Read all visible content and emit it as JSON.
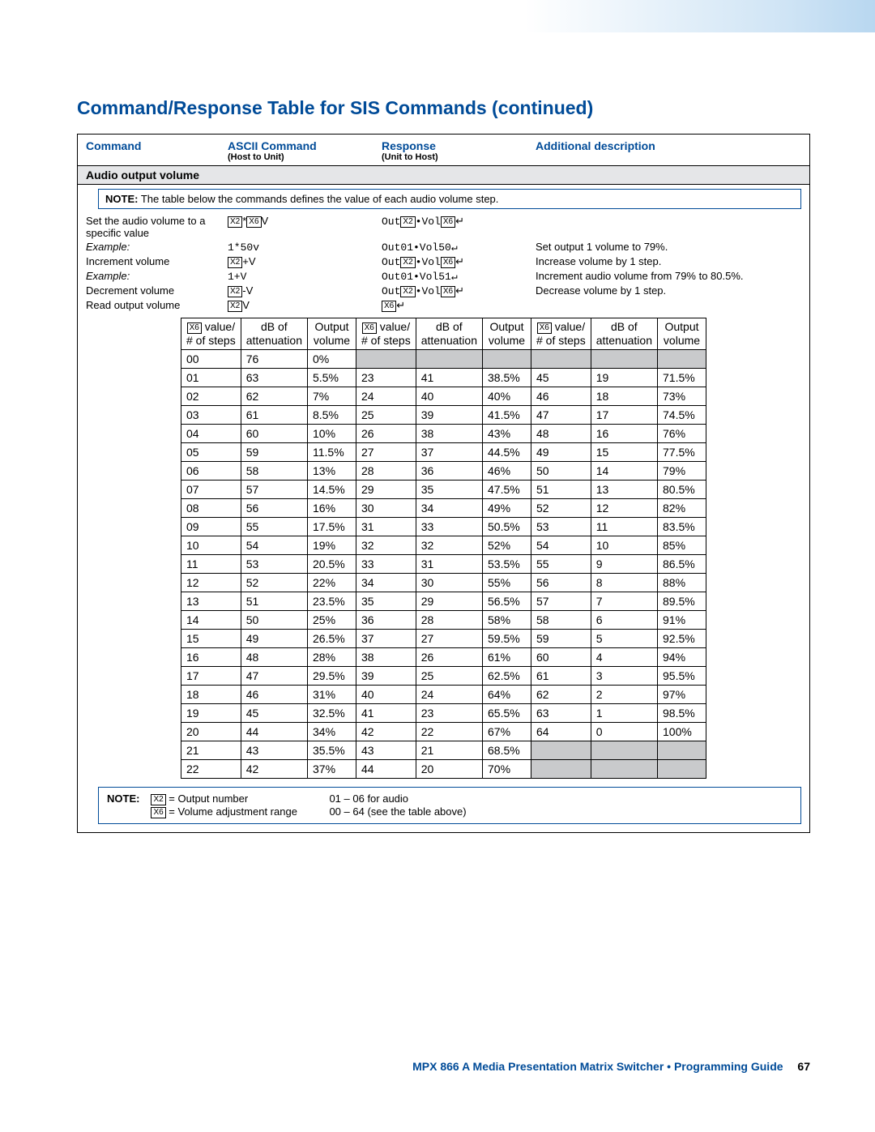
{
  "title": "Command/Response Table for SIS Commands (continued)",
  "headers": {
    "command": "Command",
    "ascii": "ASCII Command",
    "ascii_sub": "(Host to Unit)",
    "response": "Response",
    "response_sub": "(Unit to Host)",
    "additional": "Additional description"
  },
  "section": "Audio output volume",
  "note1_label": "NOTE:",
  "note1_text": "The table below the commands defines the value of each audio volume step.",
  "commands": [
    {
      "name": "Set the audio volume to a specific value",
      "ascii_pre": "",
      "ascii_x2": "X2",
      "ascii_mid": "*",
      "ascii_x6": "X6",
      "ascii_post": "V",
      "resp_pre": "Out",
      "resp_x2": "X2",
      "resp_mid": "•Vol",
      "resp_x6": "X6",
      "resp_ret": "↵",
      "desc": ""
    },
    {
      "name": "Example:",
      "italic": true,
      "ascii_plain": "1*50v",
      "resp_plain": "Out01•Vol50↵",
      "desc": "Set output 1 volume to 79%."
    },
    {
      "name": "Increment volume",
      "ascii_x2": "X2",
      "ascii_post": "+V",
      "resp_pre": "Out",
      "resp_x2": "X2",
      "resp_mid": "•Vol",
      "resp_x6": "X6",
      "resp_ret": "↵",
      "desc": "Increase volume by 1 step."
    },
    {
      "name": "Example:",
      "italic": true,
      "ascii_plain": "1+V",
      "resp_plain": "Out01•Vol51↵",
      "desc": "Increment audio volume from 79% to 80.5%."
    },
    {
      "name": "Decrement volume",
      "ascii_x2": "X2",
      "ascii_post": "-V",
      "resp_pre": "Out",
      "resp_x2": "X2",
      "resp_mid": "•Vol",
      "resp_x6": "X6",
      "resp_ret": "↵",
      "desc": "Decrease volume by 1 step."
    },
    {
      "name": "Read output volume",
      "ascii_x2": "X2",
      "ascii_post": "V",
      "resp_x6": "X6",
      "resp_ret": "↵",
      "desc": ""
    }
  ],
  "vol_headers": {
    "h1a": "X6",
    "h1b": "value/",
    "h1c": "# of steps",
    "h2a": "dB of",
    "h2b": "attenuation",
    "h3a": "Output",
    "h3b": "volume"
  },
  "vol_rows": [
    [
      "00",
      "76",
      "0%",
      "",
      "",
      "",
      "",
      "",
      ""
    ],
    [
      "01",
      "63",
      "5.5%",
      "23",
      "41",
      "38.5%",
      "45",
      "19",
      "71.5%"
    ],
    [
      "02",
      "62",
      "7%",
      "24",
      "40",
      "40%",
      "46",
      "18",
      "73%"
    ],
    [
      "03",
      "61",
      "8.5%",
      "25",
      "39",
      "41.5%",
      "47",
      "17",
      "74.5%"
    ],
    [
      "04",
      "60",
      "10%",
      "26",
      "38",
      "43%",
      "48",
      "16",
      "76%"
    ],
    [
      "05",
      "59",
      "11.5%",
      "27",
      "37",
      "44.5%",
      "49",
      "15",
      "77.5%"
    ],
    [
      "06",
      "58",
      "13%",
      "28",
      "36",
      "46%",
      "50",
      "14",
      "79%"
    ],
    [
      "07",
      "57",
      "14.5%",
      "29",
      "35",
      "47.5%",
      "51",
      "13",
      "80.5%"
    ],
    [
      "08",
      "56",
      "16%",
      "30",
      "34",
      "49%",
      "52",
      "12",
      "82%"
    ],
    [
      "09",
      "55",
      "17.5%",
      "31",
      "33",
      "50.5%",
      "53",
      "11",
      "83.5%"
    ],
    [
      "10",
      "54",
      "19%",
      "32",
      "32",
      "52%",
      "54",
      "10",
      "85%"
    ],
    [
      "11",
      "53",
      "20.5%",
      "33",
      "31",
      "53.5%",
      "55",
      "9",
      "86.5%"
    ],
    [
      "12",
      "52",
      "22%",
      "34",
      "30",
      "55%",
      "56",
      "8",
      "88%"
    ],
    [
      "13",
      "51",
      "23.5%",
      "35",
      "29",
      "56.5%",
      "57",
      "7",
      "89.5%"
    ],
    [
      "14",
      "50",
      "25%",
      "36",
      "28",
      "58%",
      "58",
      "6",
      "91%"
    ],
    [
      "15",
      "49",
      "26.5%",
      "37",
      "27",
      "59.5%",
      "59",
      "5",
      "92.5%"
    ],
    [
      "16",
      "48",
      "28%",
      "38",
      "26",
      "61%",
      "60",
      "4",
      "94%"
    ],
    [
      "17",
      "47",
      "29.5%",
      "39",
      "25",
      "62.5%",
      "61",
      "3",
      "95.5%"
    ],
    [
      "18",
      "46",
      "31%",
      "40",
      "24",
      "64%",
      "62",
      "2",
      "97%"
    ],
    [
      "19",
      "45",
      "32.5%",
      "41",
      "23",
      "65.5%",
      "63",
      "1",
      "98.5%"
    ],
    [
      "20",
      "44",
      "34%",
      "42",
      "22",
      "67%",
      "64",
      "0",
      "100%"
    ],
    [
      "21",
      "43",
      "35.5%",
      "43",
      "21",
      "68.5%",
      "",
      "",
      ""
    ],
    [
      "22",
      "42",
      "37%",
      "44",
      "20",
      "70%",
      "",
      "",
      ""
    ]
  ],
  "note2_label": "NOTE:",
  "note2_x2": "X2",
  "note2_x2_eq": " = Output number",
  "note2_x2_range": "01 – 06 for audio",
  "note2_x6": "X6",
  "note2_x6_eq": " = Volume adjustment range",
  "note2_x6_range": "00 – 64 (see the table above)",
  "footer_text": "MPX 866 A Media Presentation Matrix Switcher • Programming Guide",
  "footer_page": "67"
}
